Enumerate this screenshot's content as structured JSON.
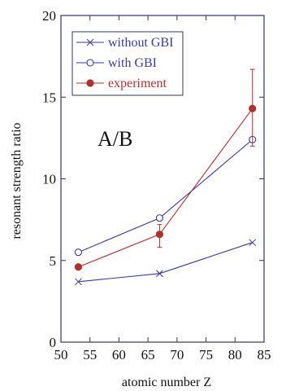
{
  "chart_data": {
    "type": "line",
    "title": "",
    "xlabel": "atomic number Z",
    "ylabel": "resonant strength ratio",
    "xlim": [
      50,
      85
    ],
    "ylim": [
      0,
      20
    ],
    "xticks": [
      50,
      55,
      60,
      65,
      70,
      75,
      80,
      85
    ],
    "yticks": [
      0,
      5,
      10,
      15,
      20
    ],
    "x_tick_labels": [
      "50",
      "55",
      "60",
      "65",
      "70",
      "75",
      "80",
      "85"
    ],
    "y_tick_labels": [
      "0",
      "5",
      "10",
      "15",
      "20"
    ],
    "grid": false,
    "legend_position": "top-left",
    "annotation": "A/B",
    "series": [
      {
        "name": "without GBI",
        "color": "#3a3aa0",
        "marker": "x",
        "x": [
          53,
          67,
          83
        ],
        "y": [
          3.7,
          4.2,
          6.1
        ]
      },
      {
        "name": "with GBI",
        "color": "#3a3aa0",
        "marker": "open-circle",
        "x": [
          53,
          67,
          83
        ],
        "y": [
          5.5,
          7.6,
          12.4
        ]
      },
      {
        "name": "experiment",
        "color": "#b03030",
        "marker": "filled-circle",
        "x": [
          53,
          67,
          83
        ],
        "y": [
          4.6,
          6.6,
          14.3
        ],
        "error_low": [
          0,
          0.8,
          2.3
        ],
        "error_high": [
          0,
          0.6,
          2.4
        ]
      }
    ]
  }
}
